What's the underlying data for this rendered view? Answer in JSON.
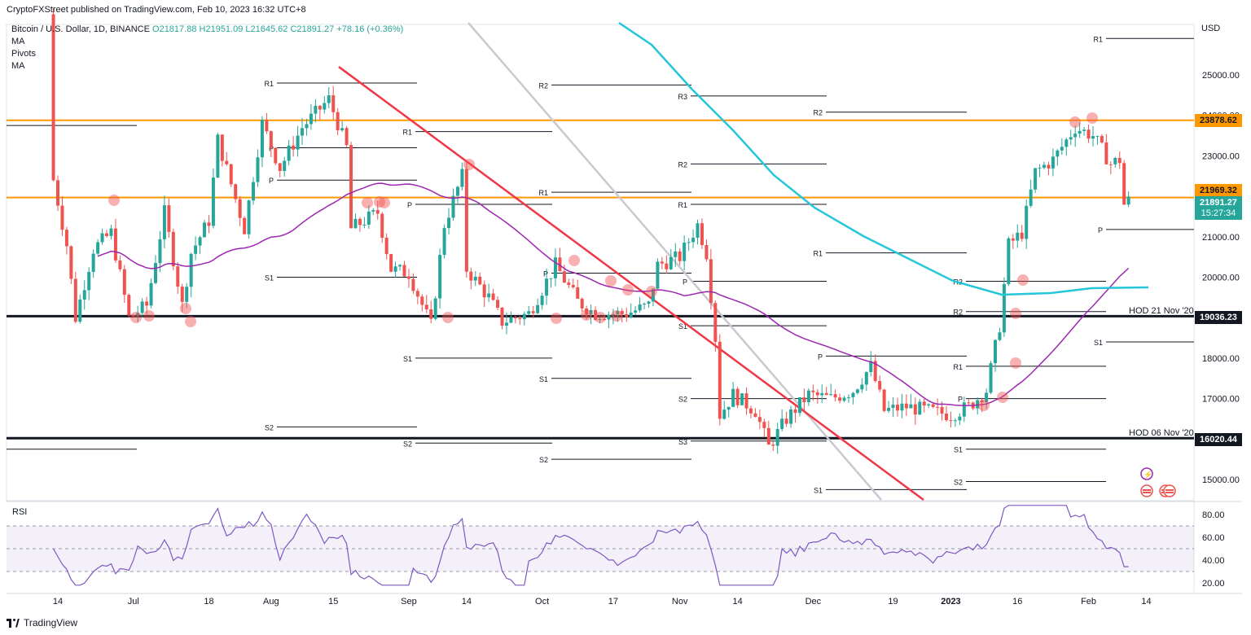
{
  "header": {
    "publisher": "CryptoFXStreet published on TradingView.com, Feb 10, 2023 16:32 UTC+8",
    "symbol": "Bitcoin / U.S. Dollar, 1D, BINANCE",
    "open": "O21817.88",
    "high": "H21951.09",
    "low": "L21645.62",
    "close": "C21891.27",
    "change": "+78.16 (+0.36%)",
    "indicators": [
      "MA",
      "Pivots",
      "MA"
    ]
  },
  "price_labels": {
    "currency": "USD",
    "resistance_top": "23878.62",
    "resistance_mid": "21969.32",
    "last_price": "21891.27",
    "countdown": "15:27:34",
    "support_1": "19036.23",
    "support_2": "16020.44",
    "hod_1": "HOD 21 Nov '20",
    "hod_2": "HOD 06 Nov '20"
  },
  "footer": {
    "brand": "TradingView"
  },
  "colors": {
    "up": "#26a69a",
    "down": "#ef5350",
    "orange": "#ff9800",
    "cyan": "#26c6da",
    "purple": "#9c27b0",
    "red_trend": "#f23645",
    "grey_trend": "#c8cad1",
    "rsi_line": "#7e57c2"
  },
  "chart_data": [
    {
      "type": "candlestick",
      "title": "Bitcoin / U.S. Dollar, 1D, BINANCE",
      "ylabel": "USD",
      "ylim": [
        14300,
        26300
      ],
      "y_ticks": [
        15000,
        16000,
        17000,
        18000,
        19000,
        20000,
        21000,
        22000,
        23000,
        24000,
        25000
      ],
      "x_ticks": [
        "14",
        "Jul",
        "18",
        "Aug",
        "15",
        "Sep",
        "14",
        "Oct",
        "17",
        "Nov",
        "14",
        "Dec",
        "19",
        "2023",
        "16",
        "Feb",
        "14"
      ],
      "close_path": [
        [
          "Jun 13",
          22400
        ],
        [
          "Jun 16",
          20800
        ],
        [
          "Jun 18",
          19000
        ],
        [
          "Jun 22",
          20700
        ],
        [
          "Jun 26",
          21100
        ],
        [
          "Jun 30",
          19000
        ],
        [
          "Jul 4",
          19300
        ],
        [
          "Jul 8",
          21600
        ],
        [
          "Jul 12",
          19300
        ],
        [
          "Jul 14",
          20600
        ],
        [
          "Jul 18",
          21400
        ],
        [
          "Jul 20",
          23400
        ],
        [
          "Jul 26",
          21200
        ],
        [
          "Jul 30",
          23800
        ],
        [
          "Aug 3",
          22700
        ],
        [
          "Aug 8",
          23700
        ],
        [
          "Aug 14",
          24400
        ],
        [
          "Aug 18",
          23200
        ],
        [
          "Aug 19",
          21200
        ],
        [
          "Aug 25",
          21600
        ],
        [
          "Aug 28",
          20200
        ],
        [
          "Sep 1",
          20100
        ],
        [
          "Sep 6",
          18800
        ],
        [
          "Sep 9",
          21300
        ],
        [
          "Sep 13",
          22500
        ],
        [
          "Sep 14",
          20200
        ],
        [
          "Sep 19",
          19500
        ],
        [
          "Sep 22",
          18900
        ],
        [
          "Sep 28",
          19100
        ],
        [
          "Oct 4",
          20300
        ],
        [
          "Oct 9",
          19400
        ],
        [
          "Oct 13",
          19100
        ],
        [
          "Oct 20",
          19100
        ],
        [
          "Oct 25",
          19300
        ],
        [
          "Oct 27",
          20300
        ],
        [
          "Nov 1",
          20500
        ],
        [
          "Nov 5",
          21300
        ],
        [
          "Nov 7",
          20600
        ],
        [
          "Nov 9",
          18500
        ],
        [
          "Nov 10",
          16600
        ],
        [
          "Nov 13",
          17100
        ],
        [
          "Nov 18",
          16700
        ],
        [
          "Nov 21",
          15800
        ],
        [
          "Nov 25",
          16500
        ],
        [
          "Nov 30",
          17100
        ],
        [
          "Dec 5",
          17000
        ],
        [
          "Dec 10",
          17200
        ],
        [
          "Dec 14",
          17800
        ],
        [
          "Dec 17",
          16700
        ],
        [
          "Dec 22",
          16800
        ],
        [
          "Dec 27",
          16700
        ],
        [
          "Jan 1",
          16600
        ],
        [
          "Jan 5",
          16800
        ],
        [
          "Jan 9",
          17200
        ],
        [
          "Jan 12",
          18800
        ],
        [
          "Jan 14",
          20800
        ],
        [
          "Jan 17",
          21100
        ],
        [
          "Jan 20",
          22600
        ],
        [
          "Jan 24",
          22900
        ],
        [
          "Jan 29",
          23700
        ],
        [
          "Feb 2",
          23500
        ],
        [
          "Feb 6",
          22800
        ],
        [
          "Feb 8",
          22900
        ],
        [
          "Feb 9",
          21800
        ],
        [
          "Feb 10",
          21891.27
        ]
      ],
      "horizontal_levels": [
        {
          "value": 23878.62,
          "color": "orange"
        },
        {
          "value": 21969.32,
          "color": "orange"
        },
        {
          "value": 19036.23,
          "color": "black",
          "label": "HOD 21 Nov '20"
        },
        {
          "value": 16020.44,
          "color": "black",
          "label": "HOD 06 Nov '20"
        }
      ],
      "pivot_labels": [
        "R1",
        "R2",
        "R3",
        "P",
        "S1",
        "S2",
        "S3"
      ],
      "series": [
        {
          "name": "MA"
        },
        {
          "name": "MA"
        }
      ]
    },
    {
      "type": "line",
      "title": "RSI",
      "ylim": [
        15,
        92
      ],
      "y_ticks": [
        20,
        40,
        60,
        80
      ],
      "bands": [
        30,
        50,
        70
      ]
    }
  ]
}
